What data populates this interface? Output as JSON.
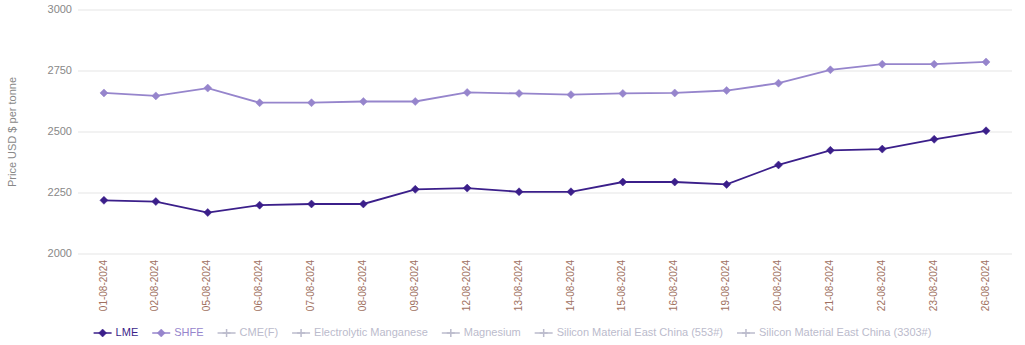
{
  "chart_data": {
    "type": "line",
    "ylabel": "Price USD $ per tonne",
    "categories": [
      "01-08-2024",
      "02-08-2024",
      "05-08-2024",
      "06-08-2024",
      "07-08-2024",
      "08-08-2024",
      "09-08-2024",
      "12-08-2024",
      "13-08-2024",
      "14-08-2024",
      "15-08-2024",
      "16-08-2024",
      "19-08-2024",
      "20-08-2024",
      "21-08-2024",
      "22-08-2024",
      "23-08-2024",
      "26-08-2024"
    ],
    "series": [
      {
        "name": "LME",
        "color": "#3b1f8a",
        "marker": "diamond",
        "values": [
          2220,
          2215,
          2170,
          2200,
          2205,
          2205,
          2265,
          2270,
          2255,
          2255,
          2295,
          2295,
          2285,
          2365,
          2425,
          2430,
          2470,
          2505
        ]
      },
      {
        "name": "SHFE",
        "color": "#9685cc",
        "marker": "diamond",
        "values": [
          2660,
          2648,
          2680,
          2620,
          2620,
          2625,
          2625,
          2662,
          2658,
          2653,
          2658,
          2660,
          2670,
          2700,
          2755,
          2778,
          2778,
          2787
        ]
      },
      {
        "name": "CME(F)",
        "color": "#bbbbcc",
        "marker": "plus",
        "values": [
          null,
          null,
          null,
          null,
          null,
          null,
          null,
          null,
          null,
          null,
          null,
          null,
          null,
          null,
          null,
          null,
          null,
          null
        ]
      },
      {
        "name": "Electrolytic Manganese",
        "color": "#bbbbcc",
        "marker": "plus",
        "values": [
          null,
          null,
          null,
          null,
          null,
          null,
          null,
          null,
          null,
          null,
          null,
          null,
          null,
          null,
          null,
          null,
          null,
          null
        ]
      },
      {
        "name": "Magnesium",
        "color": "#bbbbcc",
        "marker": "plus",
        "values": [
          null,
          null,
          null,
          null,
          null,
          null,
          null,
          null,
          null,
          null,
          null,
          null,
          null,
          null,
          null,
          null,
          null,
          null
        ]
      },
      {
        "name": "Silicon Material East China (553#)",
        "color": "#bbbbcc",
        "marker": "plus",
        "values": [
          null,
          null,
          null,
          null,
          null,
          null,
          null,
          null,
          null,
          null,
          null,
          null,
          null,
          null,
          null,
          null,
          null,
          null
        ]
      },
      {
        "name": "Silicon Material East China (3303#)",
        "color": "#bbbbcc",
        "marker": "plus",
        "values": [
          null,
          null,
          null,
          null,
          null,
          null,
          null,
          null,
          null,
          null,
          null,
          null,
          null,
          null,
          null,
          null,
          null,
          null
        ]
      }
    ],
    "ylim": [
      2000,
      3000
    ],
    "yticks": [
      2000,
      2250,
      2500,
      2750,
      3000
    ],
    "grid": true,
    "legend": "bottom"
  }
}
